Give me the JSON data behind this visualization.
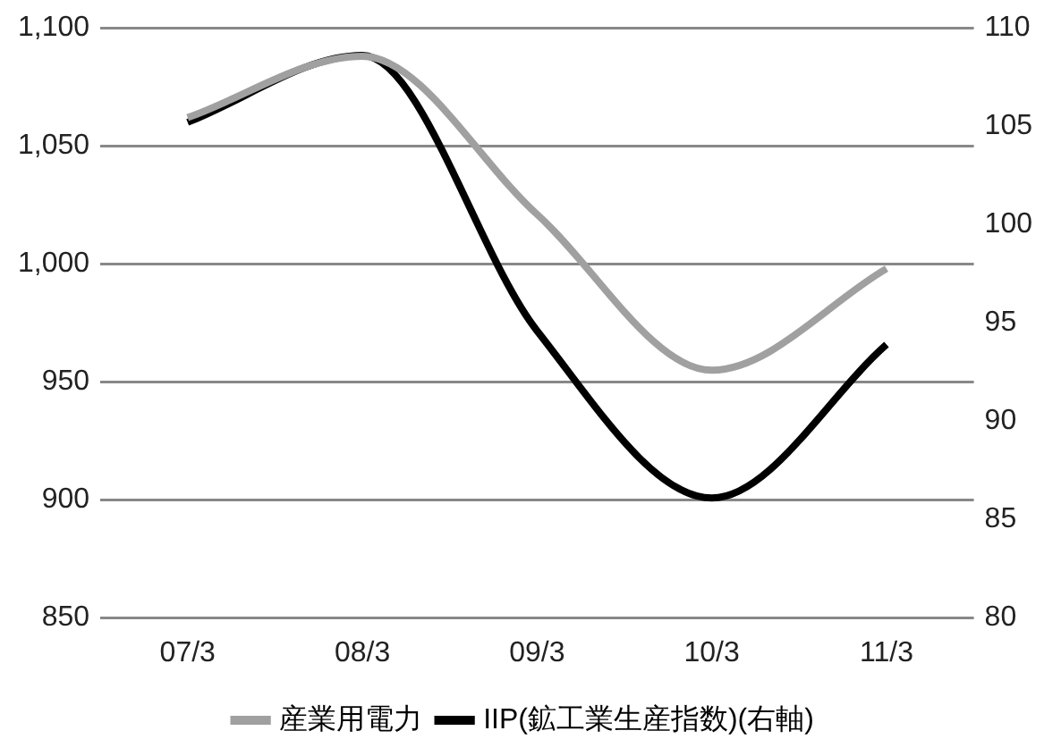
{
  "chart_data": {
    "type": "line",
    "categories": [
      "07/3",
      "08/3",
      "09/3",
      "10/3",
      "11/3"
    ],
    "series": [
      {
        "name": "産業用電力",
        "color": "#a0a0a0",
        "values": [
          1062,
          1088,
          1021,
          955,
          998
        ]
      },
      {
        "name": "IIP(鉱工業生産指数)(右軸)",
        "color": "#000000",
        "values": [
          105.2,
          108.6,
          94.6,
          86.1,
          93.9
        ],
        "axis": "y2"
      }
    ],
    "ylim": [
      850,
      1100
    ],
    "yticks": [
      {
        "value": 850,
        "label": "850"
      },
      {
        "value": 900,
        "label": "900"
      },
      {
        "value": 950,
        "label": "950"
      },
      {
        "value": 1000,
        "label": "1,000"
      },
      {
        "value": 1050,
        "label": "1,050"
      },
      {
        "value": 1100,
        "label": "1,100"
      }
    ],
    "y2lim": [
      80,
      110
    ],
    "y2ticks": [
      80,
      85,
      90,
      95,
      100,
      105,
      110
    ],
    "grid": "y",
    "legend": "bottom",
    "marker": "none",
    "line_style": "solid"
  }
}
